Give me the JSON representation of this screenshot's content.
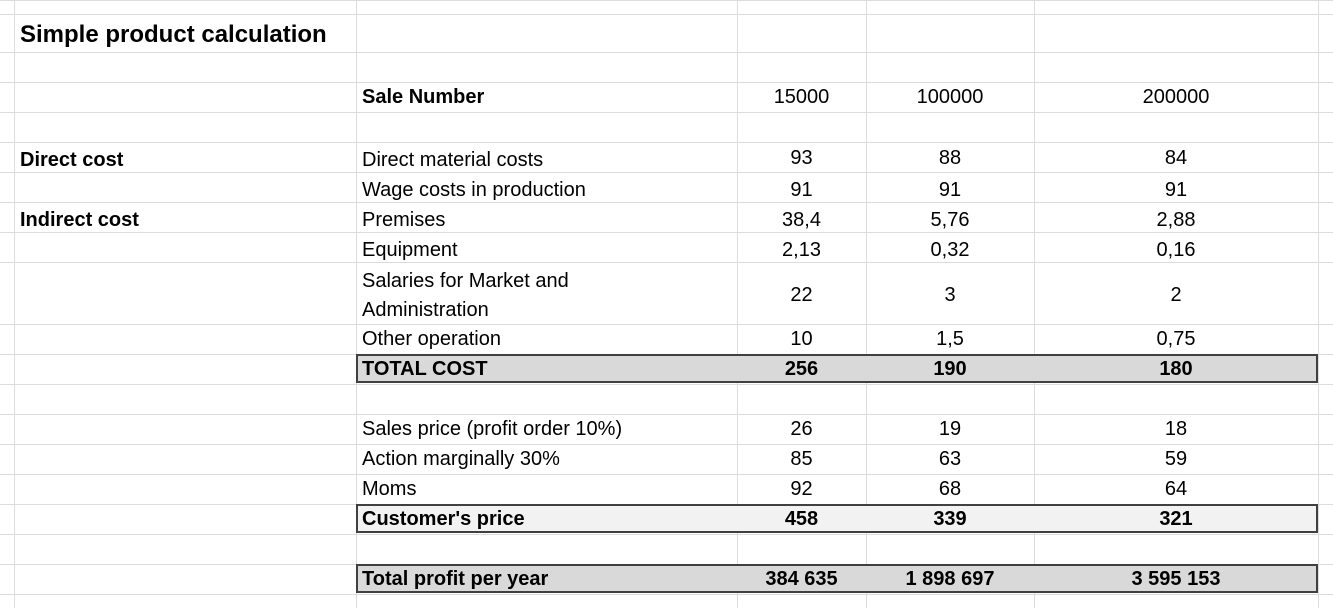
{
  "sheet": {
    "title": "Simple product calculation",
    "header": {
      "label": "Sale Number",
      "cols": [
        "15000",
        "100000",
        "200000"
      ]
    },
    "sections": {
      "direct": "Direct cost",
      "indirect": "Indirect cost"
    },
    "rows": [
      {
        "label": "Direct material costs",
        "values": [
          "93",
          "88",
          "84"
        ]
      },
      {
        "label": "Wage costs in production",
        "values": [
          "91",
          "91",
          "91"
        ]
      },
      {
        "label": "Premises",
        "values": [
          "38,4",
          "5,76",
          "2,88"
        ]
      },
      {
        "label": "Equipment",
        "values": [
          "2,13",
          "0,32",
          "0,16"
        ]
      },
      {
        "label": "Salaries for Market and",
        "label2": "Administration",
        "values": [
          "22",
          "3",
          "2"
        ]
      },
      {
        "label": "Other operation",
        "values": [
          "10",
          "1,5",
          "0,75"
        ]
      }
    ],
    "total_cost": {
      "label": "TOTAL COST",
      "values": [
        "256",
        "190",
        "180"
      ]
    },
    "price_rows": [
      {
        "label": "Sales price (profit order 10%)",
        "values": [
          "26",
          "19",
          "18"
        ]
      },
      {
        "label": "Action marginally 30%",
        "values": [
          "85",
          "63",
          "59"
        ]
      },
      {
        "label": "Moms",
        "values": [
          "92",
          "68",
          "64"
        ]
      }
    ],
    "customer_price": {
      "label": "Customer's price",
      "values": [
        "458",
        "339",
        "321"
      ]
    },
    "total_profit": {
      "label": "Total profit per year",
      "values": [
        "384 635",
        "1 898 697",
        "3 595 153"
      ]
    }
  },
  "colors": {
    "grid": "#dcdcdc",
    "total_fill": "#d9d9d9",
    "customer_fill": "#f2f2f2",
    "border": "#404040"
  }
}
